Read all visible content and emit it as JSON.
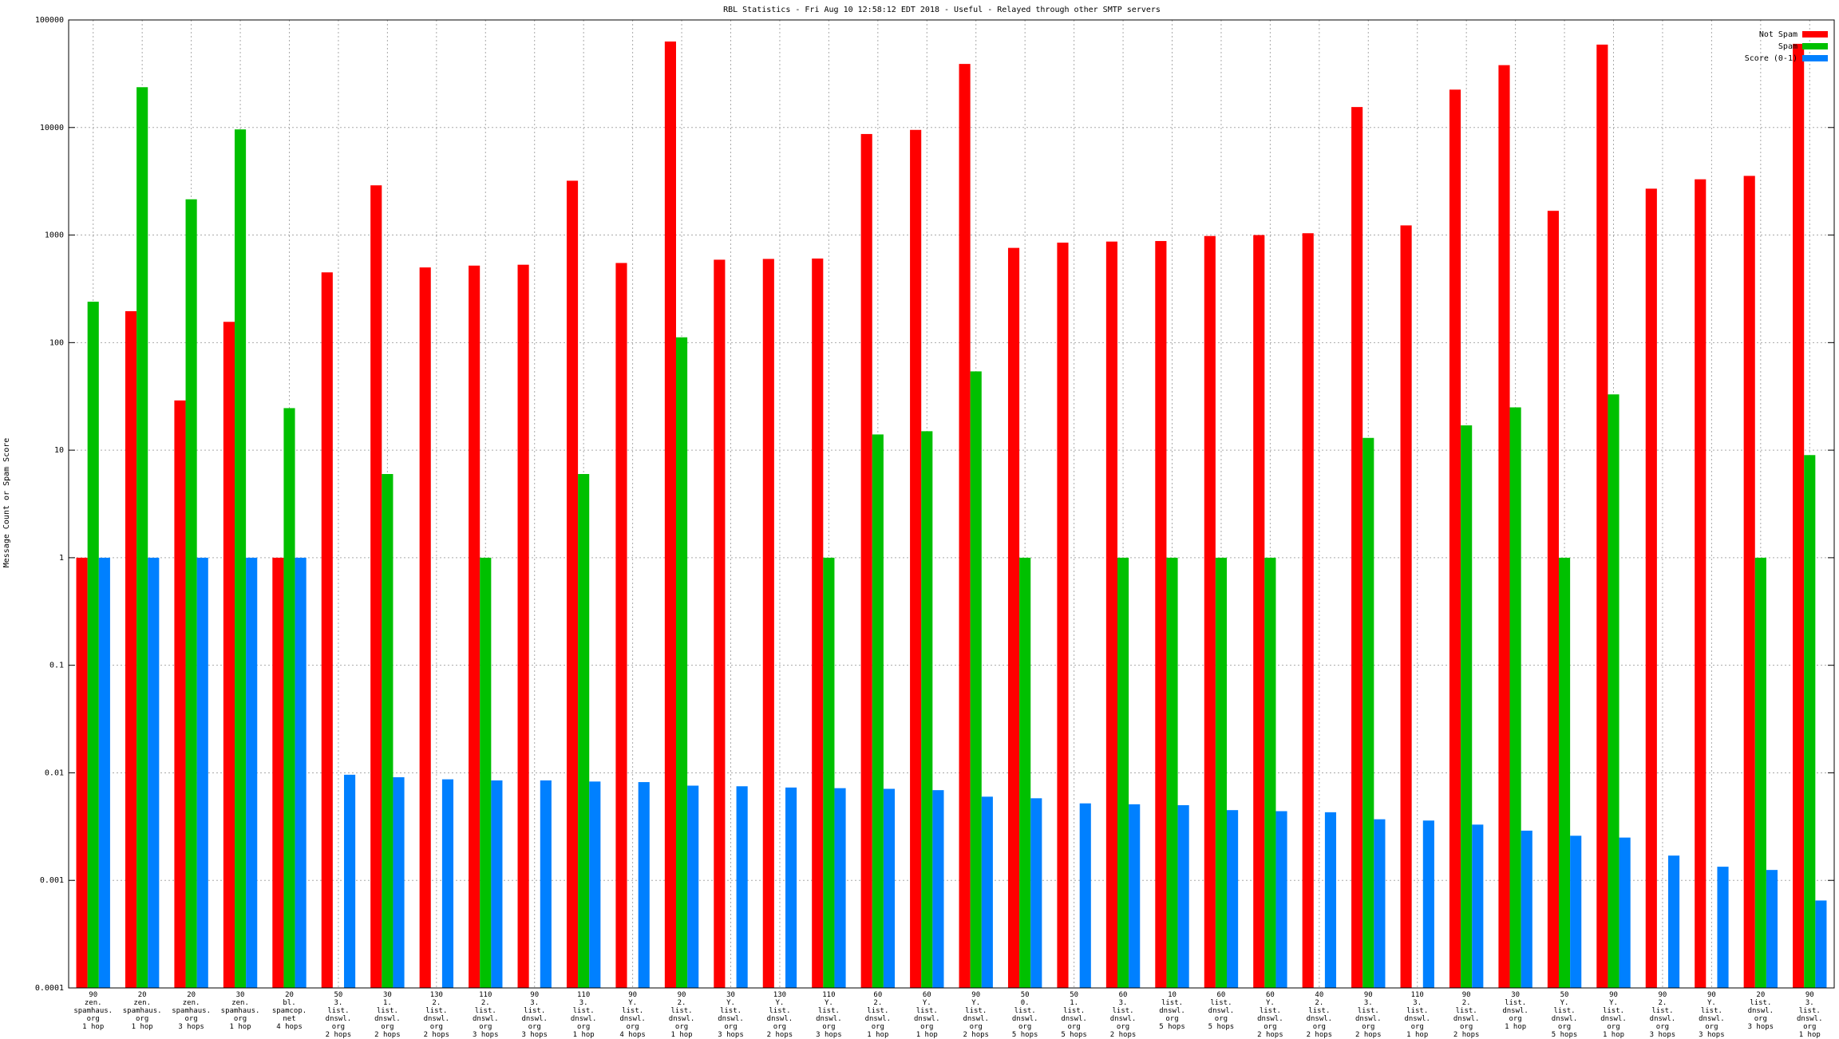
{
  "chart_data": {
    "type": "bar",
    "title": "RBL Statistics - Fri Aug 10 12:58:12 EDT 2018 - Useful - Relayed through other SMTP servers",
    "y_label": "Message Count or Spam Score",
    "log_scale": true,
    "grid": true,
    "legend_position": "top-right",
    "ylim": [
      0.0001,
      100000
    ],
    "yticks": [
      0.0001,
      0.001,
      0.01,
      0.1,
      1,
      10,
      100,
      1000,
      10000,
      100000
    ],
    "categories": [
      "90\nzen.\nspamhaus.\norg\n1 hop",
      "20\nzen.\nspamhaus.\norg\n1 hop",
      "20\nzen.\nspamhaus.\norg\n3 hops",
      "30\nzen.\nspamhaus.\norg\n1 hop",
      "20\nbl.\nspamcop.\nnet\n4 hops",
      "50\n3.\nlist.\ndnswl.\norg\n2 hops",
      "30\n1.\nlist.\ndnswl.\norg\n2 hops",
      "130\n2.\nlist.\ndnswl.\norg\n2 hops",
      "110\n2.\nlist.\ndnswl.\norg\n3 hops",
      "90\n3.\nlist.\ndnswl.\norg\n3 hops",
      "110\n3.\nlist.\ndnswl.\norg\n1 hop",
      "90\nY.\nlist.\ndnswl.\norg\n4 hops",
      "90\n2.\nlist.\ndnswl.\norg\n1 hop",
      "30\nY.\nlist.\ndnswl.\norg\n3 hops",
      "130\nY.\nlist.\ndnswl.\norg\n2 hops",
      "110\nY.\nlist.\ndnswl.\norg\n3 hops",
      "60\n2.\nlist.\ndnswl.\norg\n1 hop",
      "60\nY.\nlist.\ndnswl.\norg\n1 hop",
      "90\nY.\nlist.\ndnswl.\norg\n2 hops",
      "50\n0.\nlist.\ndnswl.\norg\n5 hops",
      "50\n1.\nlist.\ndnswl.\norg\n5 hops",
      "60\n3.\nlist.\ndnswl.\norg\n2 hops",
      "10\nlist.\ndnswl.\norg\n5 hops",
      "60\nlist.\ndnswl.\norg\n5 hops",
      "60\nY.\nlist.\ndnswl.\norg\n2 hops",
      "40\n2.\nlist.\ndnswl.\norg\n2 hops",
      "90\n3.\nlist.\ndnswl.\norg\n2 hops",
      "110\n3.\nlist.\ndnswl.\norg\n1 hop",
      "90\n2.\nlist.\ndnswl.\norg\n2 hops",
      "30\nlist.\ndnswl.\norg\n1 hop",
      "50\nY.\nlist.\ndnswl.\norg\n5 hops",
      "90\nY.\nlist.\ndnswl.\norg\n1 hop",
      "90\n2.\nlist.\ndnswl.\norg\n3 hops",
      "90\nY.\nlist.\ndnswl.\norg\n3 hops",
      "20\nlist.\ndnswl.\norg\n3 hops",
      "90\n3.\nlist.\ndnswl.\norg\n1 hop"
    ],
    "series": [
      {
        "name": "Not Spam",
        "color": "#ff0000",
        "values": [
          1,
          196,
          29,
          156,
          1,
          450,
          2900,
          500,
          520,
          530,
          3200,
          550,
          63000,
          590,
          600,
          605,
          8700,
          9500,
          39000,
          760,
          850,
          870,
          880,
          980,
          1000,
          1040,
          15500,
          1230,
          22500,
          38000,
          1680,
          59000,
          2700,
          3300,
          3550,
          60000
        ]
      },
      {
        "name": "Spam",
        "color": "#00c000",
        "values": [
          240,
          23700,
          2150,
          9600,
          24.6,
          null,
          6,
          null,
          1,
          null,
          6,
          null,
          112,
          null,
          null,
          1,
          14,
          15,
          54,
          1,
          null,
          1,
          1,
          1,
          1,
          null,
          13,
          null,
          17,
          25,
          1,
          33,
          null,
          null,
          1,
          9
        ]
      },
      {
        "name": "Score (0-1)",
        "color": "#0080ff",
        "values": [
          1,
          1,
          1,
          1,
          1,
          0.0096,
          0.0091,
          0.0087,
          0.0085,
          0.0085,
          0.0083,
          0.0082,
          0.0076,
          0.0075,
          0.0073,
          0.0072,
          0.0071,
          0.0069,
          0.006,
          0.0058,
          0.0052,
          0.0051,
          0.005,
          0.0045,
          0.0044,
          0.0043,
          0.0037,
          0.0036,
          0.0033,
          0.0029,
          0.0026,
          0.0025,
          0.0017,
          0.00134,
          0.00125,
          0.00065
        ]
      }
    ]
  }
}
